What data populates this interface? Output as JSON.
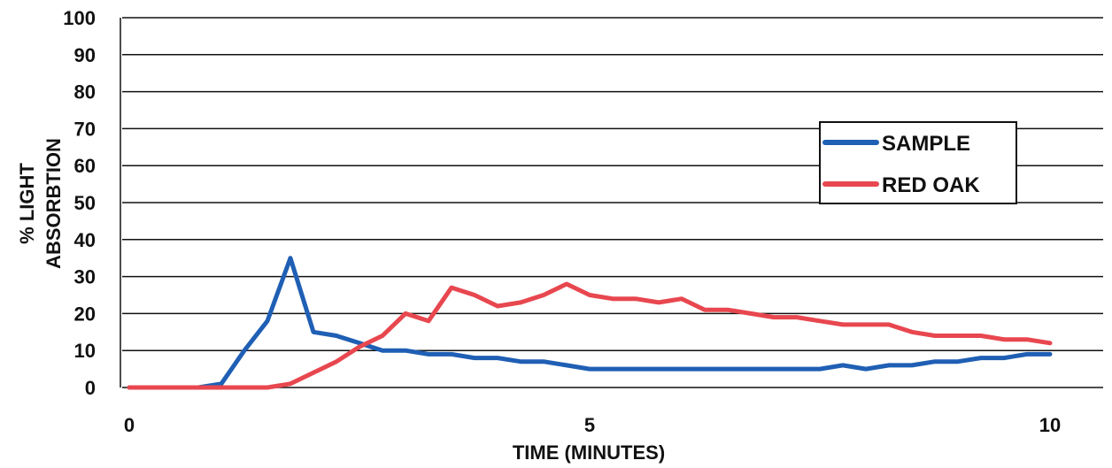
{
  "chart_data": {
    "type": "line",
    "title": "",
    "xlabel": "TIME (MINUTES)",
    "ylabel_lines": [
      "% LIGHT",
      "ABSORBTION"
    ],
    "xlim": [
      0,
      10
    ],
    "ylim": [
      0,
      100
    ],
    "x_ticks": [
      0,
      5,
      10
    ],
    "y_ticks": [
      0,
      10,
      20,
      30,
      40,
      50,
      60,
      70,
      80,
      90,
      100
    ],
    "grid": "horizontal",
    "legend_position": "right",
    "series": [
      {
        "name": "SAMPLE",
        "color": "#1f5fb4",
        "points": [
          [
            0,
            0
          ],
          [
            0.75,
            0
          ],
          [
            1.0,
            1
          ],
          [
            1.25,
            10
          ],
          [
            1.5,
            18
          ],
          [
            1.75,
            35
          ],
          [
            2.0,
            15
          ],
          [
            2.25,
            14
          ],
          [
            2.5,
            12
          ],
          [
            2.75,
            10
          ],
          [
            3.0,
            10
          ],
          [
            3.25,
            9
          ],
          [
            3.5,
            9
          ],
          [
            3.75,
            8
          ],
          [
            4.0,
            8
          ],
          [
            4.25,
            7
          ],
          [
            4.5,
            7
          ],
          [
            4.75,
            6
          ],
          [
            5.0,
            5
          ],
          [
            5.5,
            5
          ],
          [
            6.0,
            5
          ],
          [
            6.5,
            5
          ],
          [
            7.0,
            5
          ],
          [
            7.5,
            5
          ],
          [
            7.75,
            6
          ],
          [
            8.0,
            5
          ],
          [
            8.25,
            6
          ],
          [
            8.5,
            6
          ],
          [
            8.75,
            7
          ],
          [
            9.0,
            7
          ],
          [
            9.25,
            8
          ],
          [
            9.5,
            8
          ],
          [
            9.75,
            9
          ],
          [
            10.0,
            9
          ]
        ]
      },
      {
        "name": "RED OAK",
        "color": "#e8474f",
        "points": [
          [
            0,
            0
          ],
          [
            1.5,
            0
          ],
          [
            1.75,
            1
          ],
          [
            2.0,
            4
          ],
          [
            2.25,
            7
          ],
          [
            2.5,
            11
          ],
          [
            2.75,
            14
          ],
          [
            3.0,
            20
          ],
          [
            3.25,
            18
          ],
          [
            3.5,
            27
          ],
          [
            3.75,
            25
          ],
          [
            4.0,
            22
          ],
          [
            4.25,
            23
          ],
          [
            4.5,
            25
          ],
          [
            4.75,
            28
          ],
          [
            5.0,
            25
          ],
          [
            5.25,
            24
          ],
          [
            5.5,
            24
          ],
          [
            5.75,
            23
          ],
          [
            6.0,
            24
          ],
          [
            6.25,
            21
          ],
          [
            6.5,
            21
          ],
          [
            6.75,
            20
          ],
          [
            7.0,
            19
          ],
          [
            7.25,
            19
          ],
          [
            7.5,
            18
          ],
          [
            7.75,
            17
          ],
          [
            8.0,
            17
          ],
          [
            8.25,
            17
          ],
          [
            8.5,
            15
          ],
          [
            8.75,
            14
          ],
          [
            9.0,
            14
          ],
          [
            9.25,
            14
          ],
          [
            9.5,
            13
          ],
          [
            9.75,
            13
          ],
          [
            10.0,
            12
          ]
        ]
      }
    ]
  }
}
